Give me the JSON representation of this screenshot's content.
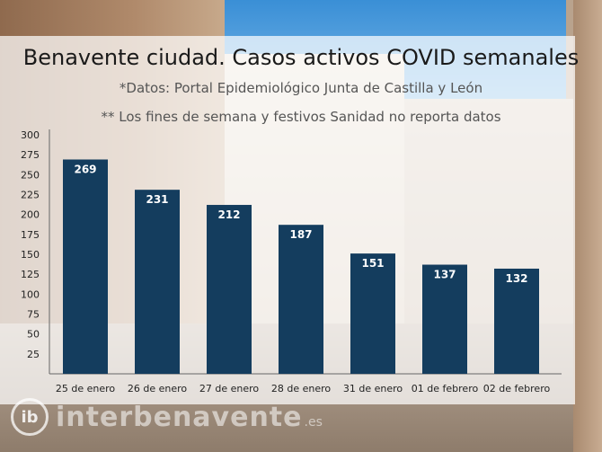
{
  "chart_data": {
    "type": "bar",
    "title": "Benavente ciudad. Casos activos COVID semanales",
    "subtitle": "*Datos: Portal Epidemiológico Junta de Castilla y León",
    "note": "** Los fines de semana y festivos Sanidad no reporta datos",
    "categories": [
      "25 de enero",
      "26 de enero",
      "27 de enero",
      "28 de enero",
      "31 de enero",
      "01 de febrero",
      "02 de febrero"
    ],
    "values": [
      269,
      231,
      212,
      187,
      151,
      137,
      132
    ],
    "ylim": [
      0,
      300
    ],
    "yticks": [
      25,
      50,
      75,
      100,
      125,
      150,
      175,
      200,
      225,
      250,
      275,
      300
    ],
    "bar_color": "#143d5e",
    "label_color": "#ffffff",
    "grid": false,
    "legend": "none"
  },
  "watermark": {
    "mark": "ib",
    "name": "interbenavente",
    "tld": ".es"
  }
}
